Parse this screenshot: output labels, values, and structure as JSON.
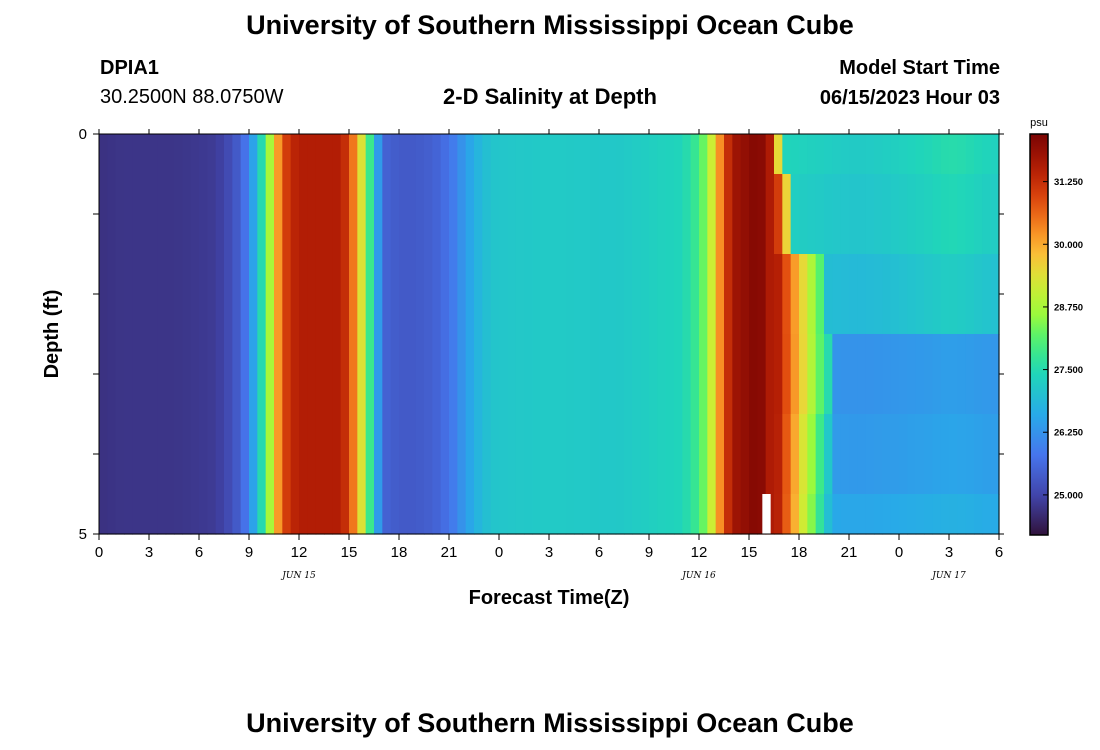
{
  "header": {
    "title": "University of Southern Mississippi Ocean Cube",
    "station_id": "DPIA1",
    "coords": "30.2500N  88.0750W",
    "subtitle": "2-D Salinity at Depth",
    "model_start_label": "Model Start Time",
    "model_start_value": "06/15/2023 Hour 03"
  },
  "footer": {
    "title": "University of Southern Mississippi Ocean Cube"
  },
  "chart_data": {
    "type": "heatmap",
    "title": "2-D Salinity at Depth",
    "xlabel": "Forecast Time(Z)",
    "ylabel": "Depth (ft)",
    "x_unit": "hours since 06/15/2023 00Z",
    "xlim": [
      0,
      54
    ],
    "ylim": [
      0,
      5
    ],
    "y_inverted": true,
    "x_tick_values": [
      0,
      3,
      6,
      9,
      12,
      15,
      18,
      21,
      24,
      27,
      30,
      33,
      36,
      39,
      42,
      45,
      48,
      51,
      54
    ],
    "x_tick_labels": [
      "0",
      "3",
      "6",
      "9",
      "12",
      "15",
      "18",
      "21",
      "0",
      "3",
      "6",
      "9",
      "12",
      "15",
      "18",
      "21",
      "0",
      "3",
      "6"
    ],
    "y_tick_values": [
      0,
      5
    ],
    "y_tick_labels": [
      "0",
      "5"
    ],
    "date_labels": [
      {
        "hour": 12,
        "text": "JUN 15"
      },
      {
        "hour": 36,
        "text": "JUN 16"
      },
      {
        "hour": 51,
        "text": "JUN 17"
      }
    ],
    "colorbar": {
      "unit": "psu",
      "min": 24.2,
      "max": 32.2,
      "tick_values": [
        25.0,
        26.25,
        27.5,
        28.75,
        30.0,
        31.25
      ],
      "tick_labels": [
        "25.000",
        "26.250",
        "27.500",
        "28.750",
        "30.000",
        "31.250"
      ]
    },
    "depth_layers": [
      [
        0,
        0.5
      ],
      [
        0.5,
        1.5
      ],
      [
        1.5,
        2.5
      ],
      [
        2.5,
        3.5
      ],
      [
        3.5,
        4.5
      ],
      [
        4.5,
        5
      ]
    ],
    "missing_cells": [
      {
        "x": [
          39.8,
          40.3
        ],
        "y": [
          4.5,
          5
        ]
      }
    ],
    "profile_hours": [
      0,
      1.5,
      3,
      4.5,
      6,
      7,
      7.5,
      8,
      8.5,
      9,
      9.5,
      10,
      10.5,
      11,
      11.5,
      12,
      14.5,
      15,
      15.7,
      16.2,
      16.7,
      17.1,
      18,
      19,
      20,
      21,
      21.7,
      22.5,
      23.5,
      27,
      31,
      35,
      36,
      36.5,
      37,
      37.5,
      38,
      39.5,
      40,
      40.5,
      41,
      43,
      44,
      45,
      46,
      47,
      48,
      50,
      51,
      52,
      54
    ],
    "surface_salinity": [
      24.7,
      24.75,
      24.75,
      24.75,
      24.8,
      24.85,
      25.0,
      25.2,
      25.5,
      26.0,
      27.0,
      28.0,
      29.5,
      30.8,
      31.3,
      31.5,
      31.5,
      31.0,
      29.5,
      28.0,
      26.5,
      25.5,
      25.35,
      25.35,
      25.45,
      25.75,
      26.2,
      26.7,
      27.1,
      27.2,
      27.15,
      27.4,
      27.9,
      28.6,
      29.7,
      30.8,
      31.7,
      32.1,
      31.9,
      31.2,
      27.3,
      27.2,
      27.15,
      27.1,
      27.1,
      27.15,
      27.2,
      27.35,
      27.45,
      27.4,
      27.2
    ],
    "eastern_front_hour_by_layer": [
      40.8,
      41.6,
      43.5,
      44.0,
      44.0,
      44.0
    ],
    "front_end_salinity_by_layer": [
      29.0,
      28.5,
      27.8,
      27.2,
      26.8,
      26.6
    ],
    "post_front_salinity_by_layer": [
      27.3,
      27.2,
      27.0,
      26.3,
      26.4,
      26.6
    ]
  }
}
